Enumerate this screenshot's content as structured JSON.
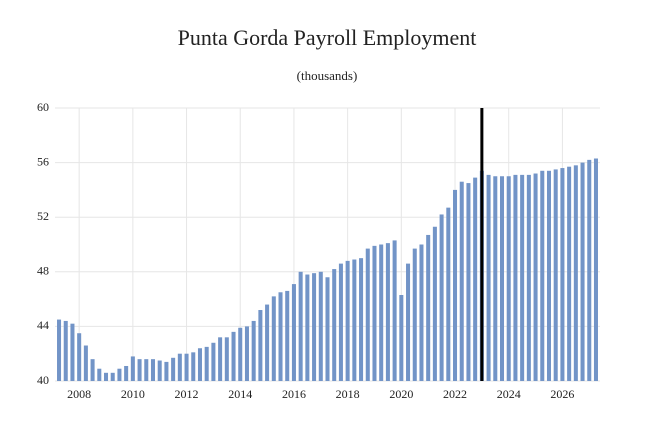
{
  "chart_data": {
    "type": "bar",
    "title": "Punta Gorda Payroll Employment",
    "subtitle": "(thousands)",
    "x": [
      2007.25,
      2007.5,
      2007.75,
      2008,
      2008.25,
      2008.5,
      2008.75,
      2009,
      2009.25,
      2009.5,
      2009.75,
      2010,
      2010.25,
      2010.5,
      2010.75,
      2011,
      2011.25,
      2011.5,
      2011.75,
      2012,
      2012.25,
      2012.5,
      2012.75,
      2013,
      2013.25,
      2013.5,
      2013.75,
      2014,
      2014.25,
      2014.5,
      2014.75,
      2015,
      2015.25,
      2015.5,
      2015.75,
      2016,
      2016.25,
      2016.5,
      2016.75,
      2017,
      2017.25,
      2017.5,
      2017.75,
      2018,
      2018.25,
      2018.5,
      2018.75,
      2019,
      2019.25,
      2019.5,
      2019.75,
      2020,
      2020.25,
      2020.5,
      2020.75,
      2021,
      2021.25,
      2021.5,
      2021.75,
      2022,
      2022.25,
      2022.5,
      2022.75,
      2023,
      2023.25,
      2023.5,
      2023.75,
      2024,
      2024.25,
      2024.5,
      2024.75,
      2025,
      2025.25,
      2025.5,
      2025.75,
      2026,
      2026.25,
      2026.5,
      2026.75,
      2027,
      2027.25
    ],
    "values": [
      44.5,
      44.4,
      44.2,
      43.5,
      42.6,
      41.6,
      40.9,
      40.6,
      40.6,
      40.9,
      41.1,
      41.8,
      41.6,
      41.6,
      41.6,
      41.5,
      41.4,
      41.7,
      42.0,
      42.0,
      42.1,
      42.4,
      42.5,
      42.8,
      43.2,
      43.2,
      43.6,
      43.9,
      44.0,
      44.4,
      45.2,
      45.6,
      46.2,
      46.5,
      46.6,
      47.1,
      48.0,
      47.8,
      47.9,
      48.0,
      47.6,
      48.2,
      48.6,
      48.8,
      48.9,
      49.0,
      49.7,
      49.9,
      50.0,
      50.1,
      50.3,
      46.3,
      48.6,
      49.7,
      50.0,
      50.7,
      51.3,
      52.2,
      52.7,
      54.0,
      54.6,
      54.5,
      54.9,
      55.4,
      55.1,
      55.0,
      55.0,
      55.0,
      55.1,
      55.1,
      55.1,
      55.2,
      55.4,
      55.4,
      55.5,
      55.6,
      55.7,
      55.8,
      56.0,
      56.2,
      56.3
    ],
    "color": "#7294c7",
    "xlim": [
      2007.1,
      2027.4
    ],
    "xticks": [
      2008,
      2010,
      2012,
      2014,
      2016,
      2018,
      2020,
      2022,
      2024,
      2026
    ],
    "ylim": [
      40,
      60
    ],
    "yticks": [
      40,
      44,
      48,
      52,
      56,
      60
    ],
    "grid": true,
    "vline": 2023
  }
}
